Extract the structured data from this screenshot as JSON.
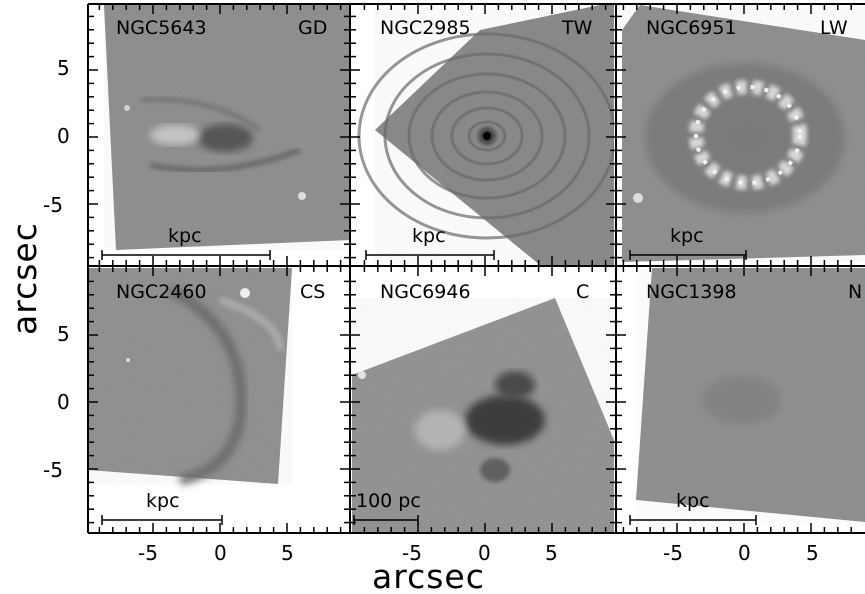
{
  "figure": {
    "xlabel": "arcsec",
    "ylabel": "arcsec",
    "x_ticks": [
      "-5",
      "0",
      "5"
    ],
    "y_ticks": [
      "5",
      "0",
      "-5"
    ]
  },
  "panels": [
    {
      "name": "NGC5643",
      "class": "GD",
      "scalebar": "kpc"
    },
    {
      "name": "NGC2985",
      "class": "TW",
      "scalebar": "kpc"
    },
    {
      "name": "NGC6951",
      "class": "LW",
      "scalebar": "kpc"
    },
    {
      "name": "NGC2460",
      "class": "CS",
      "scalebar": "kpc"
    },
    {
      "name": "NGC6946",
      "class": "C",
      "scalebar": "100 pc"
    },
    {
      "name": "NGC1398",
      "class": "N",
      "scalebar": "kpc"
    }
  ]
}
